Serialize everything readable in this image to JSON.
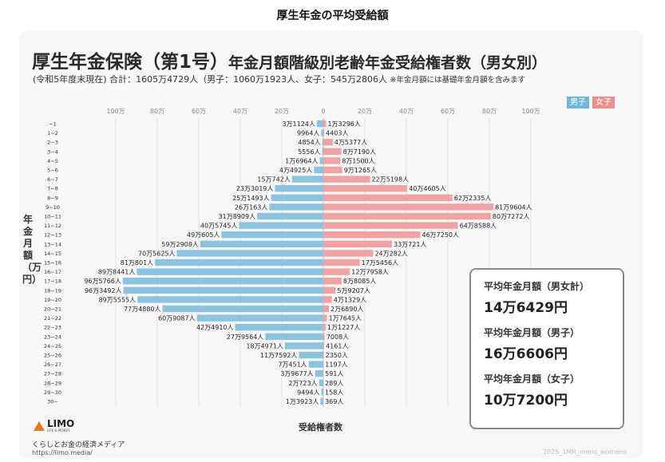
{
  "page_heading": "厚生年金の平均受給額",
  "chart_data": {
    "type": "bar",
    "orientation": "horizontal-population-pyramid",
    "title": "厚生年金保険（第1号）",
    "title_suffix": "年金月額階級別老齢年金受給権者数（男女別）",
    "subtitle": "(令和5年度末現在) 合計：1605万4729人（男子：1060万1923人、女子：545万2806人",
    "subtitle_note": "※年金月額には基礎年金月額を含みます",
    "ylabel": "年金月額（万円）",
    "xlabel": "受給権者数",
    "xlim": [
      0,
      1000000
    ],
    "x_ticks": [
      "100万",
      "80万",
      "60万",
      "40万",
      "20万",
      "0",
      "20万",
      "40万",
      "60万",
      "80万",
      "100万"
    ],
    "legend": [
      "男子",
      "女子"
    ],
    "legend_position": "top-right",
    "categories": [
      "~1",
      "1~2",
      "2~3",
      "3~4",
      "4~5",
      "5~6",
      "6~7",
      "7~8",
      "8~9",
      "9~10",
      "10~11",
      "11~12",
      "12~13",
      "13~14",
      "14~15",
      "15~16",
      "16~17",
      "17~18",
      "18~19",
      "19~20",
      "20~21",
      "21~22",
      "22~23",
      "23~24",
      "24~25",
      "25~26",
      "26~27",
      "27~28",
      "28~29",
      "29~30",
      "30~"
    ],
    "series": [
      {
        "name": "男子",
        "color": "#8cc4df",
        "values": [
          31124,
          9964,
          4854,
          5556,
          16964,
          44925,
          150742,
          233019,
          251493,
          260163,
          318909,
          405745,
          490605,
          592908,
          705625,
          810801,
          898441,
          965766,
          963492,
          895555,
          774880,
          609087,
          424910,
          279564,
          184971,
          117592,
          70451,
          39677,
          20723,
          9494,
          13923
        ],
        "labels": [
          "3万1124人",
          "9964人",
          "4854人",
          "5556人",
          "1万6964人",
          "4万4925人",
          "15万742人",
          "23万3019人",
          "25万1493人",
          "26万163人",
          "31万8909人",
          "40万5745人",
          "49万605人",
          "59万2908人",
          "70万5625人",
          "81万801人",
          "89万8441人",
          "96万5766人",
          "96万3492人",
          "89万5555人",
          "77万4880人",
          "60万9087人",
          "42万4910人",
          "27万9564人",
          "18万4971人",
          "11万7592人",
          "7万451人",
          "3万9677人",
          "2万723人",
          "9494人",
          "1万3923人"
        ]
      },
      {
        "name": "女子",
        "color": "#efa3a3",
        "values": [
          13296,
          4403,
          45377,
          87190,
          81500,
          91265,
          225198,
          404605,
          622335,
          819604,
          807272,
          648588,
          467250,
          330721,
          240282,
          175456,
          127958,
          88085,
          59207,
          41329,
          26890,
          17645,
          11227,
          7008,
          4161,
          2350,
          1197,
          591,
          289,
          158,
          369
        ],
        "labels": [
          "1万3296人",
          "4403人",
          "4万5377人",
          "8万7190人",
          "8万1500人",
          "9万1265人",
          "22万5198人",
          "40万4605人",
          "62万2335人",
          "81万9604人",
          "80万7272人",
          "64万8588人",
          "46万7250人",
          "33万721人",
          "24万282人",
          "17万5456人",
          "12万7958人",
          "8万8085人",
          "5万9207人",
          "4万1329人",
          "2万6890人",
          "1万7645人",
          "1万1227人",
          "7008人",
          "4161人",
          "2350人",
          "1197人",
          "591人",
          "289人",
          "158人",
          "369人"
        ]
      }
    ],
    "grid": true
  },
  "info_box": {
    "items": [
      {
        "label": "平均年金月額（男女計）",
        "value": "14万6429円"
      },
      {
        "label": "平均年金月額（男子）",
        "value": "16万6606円"
      },
      {
        "label": "平均年金月額（女子）",
        "value": "10万7200円"
      }
    ]
  },
  "footer": {
    "logo_text": "LIMO",
    "logo_tagline": "LIFE & MONEY",
    "site_description": "くらしとお金の経済メディア",
    "site_url": "https://limo.media/",
    "watermark": "2025_1MR_mens_womens"
  }
}
